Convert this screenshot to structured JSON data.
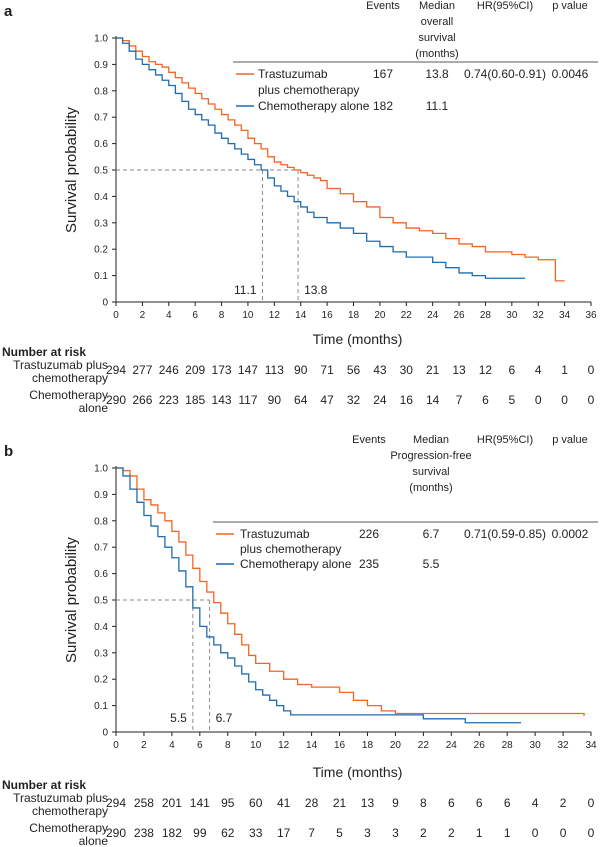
{
  "colors": {
    "trastuzumab": "#f26522",
    "chemo": "#1f6cb0"
  },
  "chart_data": [
    {
      "type": "line",
      "panel": "a",
      "xlabel": "Time (months)",
      "ylabel": "Survival probability",
      "xlim": [
        0,
        36
      ],
      "ylim": [
        0,
        1.0
      ],
      "x_ticks": [
        0,
        2,
        4,
        6,
        8,
        10,
        12,
        14,
        16,
        18,
        20,
        22,
        24,
        26,
        28,
        30,
        32,
        34,
        36
      ],
      "y_ticks": [
        "0",
        "0.1",
        "0.2",
        "0.3",
        "0.4",
        "0.5",
        "0.6",
        "0.7",
        "0.8",
        "0.9",
        "1.0"
      ],
      "table_headers": [
        "Events",
        "Median overall survival (months)",
        "HR(95%CI)",
        "p value"
      ],
      "series": [
        {
          "name": "Trastuzumab plus chemotherapy",
          "color_key": "trastuzumab",
          "events": "167",
          "median": "13.8",
          "hr": "0.74(0.60-0.91)",
          "p": "0.0046",
          "points": [
            [
              0,
              1.0
            ],
            [
              0.5,
              0.99
            ],
            [
              1,
              0.97
            ],
            [
              1.5,
              0.95
            ],
            [
              2,
              0.93
            ],
            [
              2.5,
              0.91
            ],
            [
              3,
              0.9
            ],
            [
              3.5,
              0.89
            ],
            [
              4,
              0.87
            ],
            [
              4.5,
              0.85
            ],
            [
              5,
              0.83
            ],
            [
              5.5,
              0.81
            ],
            [
              6,
              0.79
            ],
            [
              6.5,
              0.77
            ],
            [
              7,
              0.75
            ],
            [
              7.5,
              0.73
            ],
            [
              8,
              0.71
            ],
            [
              8.5,
              0.69
            ],
            [
              9,
              0.67
            ],
            [
              9.5,
              0.65
            ],
            [
              10,
              0.62
            ],
            [
              10.5,
              0.6
            ],
            [
              11,
              0.58
            ],
            [
              11.5,
              0.55
            ],
            [
              12,
              0.53
            ],
            [
              12.5,
              0.52
            ],
            [
              13,
              0.51
            ],
            [
              13.5,
              0.5
            ],
            [
              14,
              0.49
            ],
            [
              14.5,
              0.48
            ],
            [
              15,
              0.47
            ],
            [
              15.5,
              0.46
            ],
            [
              16,
              0.43
            ],
            [
              17,
              0.41
            ],
            [
              18,
              0.38
            ],
            [
              19,
              0.36
            ],
            [
              20,
              0.32
            ],
            [
              21,
              0.3
            ],
            [
              22,
              0.28
            ],
            [
              23,
              0.27
            ],
            [
              24,
              0.26
            ],
            [
              25,
              0.24
            ],
            [
              26,
              0.22
            ],
            [
              27,
              0.21
            ],
            [
              28,
              0.19
            ],
            [
              30,
              0.18
            ],
            [
              31,
              0.17
            ],
            [
              32,
              0.16
            ],
            [
              33.3,
              0.08
            ],
            [
              34,
              0.08
            ]
          ]
        },
        {
          "name": "Chemotherapy alone",
          "color_key": "chemo",
          "events": "182",
          "median": "11.1",
          "hr": "",
          "p": "",
          "points": [
            [
              0,
              1.0
            ],
            [
              0.5,
              0.98
            ],
            [
              1,
              0.95
            ],
            [
              1.5,
              0.92
            ],
            [
              2,
              0.9
            ],
            [
              2.5,
              0.88
            ],
            [
              3,
              0.86
            ],
            [
              3.5,
              0.84
            ],
            [
              4,
              0.82
            ],
            [
              4.5,
              0.79
            ],
            [
              5,
              0.76
            ],
            [
              5.5,
              0.73
            ],
            [
              6,
              0.71
            ],
            [
              6.5,
              0.69
            ],
            [
              7,
              0.67
            ],
            [
              7.5,
              0.64
            ],
            [
              8,
              0.62
            ],
            [
              8.5,
              0.6
            ],
            [
              9,
              0.58
            ],
            [
              9.5,
              0.56
            ],
            [
              10,
              0.54
            ],
            [
              10.5,
              0.52
            ],
            [
              11,
              0.5
            ],
            [
              11.5,
              0.47
            ],
            [
              12,
              0.44
            ],
            [
              12.5,
              0.42
            ],
            [
              13,
              0.4
            ],
            [
              13.5,
              0.38
            ],
            [
              14,
              0.36
            ],
            [
              14.5,
              0.34
            ],
            [
              15,
              0.32
            ],
            [
              16,
              0.3
            ],
            [
              17,
              0.28
            ],
            [
              18,
              0.26
            ],
            [
              19,
              0.23
            ],
            [
              20,
              0.21
            ],
            [
              21,
              0.19
            ],
            [
              22,
              0.17
            ],
            [
              24,
              0.15
            ],
            [
              25,
              0.13
            ],
            [
              26,
              0.11
            ],
            [
              27,
              0.1
            ],
            [
              28,
              0.09
            ],
            [
              31,
              0.09
            ]
          ]
        }
      ],
      "medians": [
        {
          "x": 11.1,
          "label": "11.1"
        },
        {
          "x": 13.8,
          "label": "13.8"
        }
      ],
      "risk_title": "Number at risk",
      "risk_rows": [
        {
          "label": [
            "Trastuzumab plus",
            "chemotherapy"
          ],
          "values": [
            "294",
            "277",
            "246",
            "209",
            "173",
            "147",
            "113",
            "90",
            "71",
            "56",
            "43",
            "30",
            "21",
            "13",
            "12",
            "6",
            "4",
            "1",
            "0"
          ]
        },
        {
          "label": [
            "Chemotherapy",
            "alone"
          ],
          "values": [
            "290",
            "266",
            "223",
            "185",
            "143",
            "117",
            "90",
            "64",
            "47",
            "32",
            "24",
            "16",
            "14",
            "7",
            "6",
            "5",
            "0",
            "0",
            "0"
          ]
        }
      ]
    },
    {
      "type": "line",
      "panel": "b",
      "xlabel": "Time (months)",
      "ylabel": "Survival probability",
      "xlim": [
        0,
        34
      ],
      "ylim": [
        0,
        1.0
      ],
      "x_ticks": [
        0,
        2,
        4,
        6,
        8,
        10,
        12,
        14,
        16,
        18,
        20,
        22,
        24,
        26,
        28,
        30,
        32,
        34
      ],
      "y_ticks": [
        "0",
        "0.1",
        "0.2",
        "0.3",
        "0.4",
        "0.5",
        "0.6",
        "0.7",
        "0.8",
        "0.9",
        "1.0"
      ],
      "table_headers": [
        "Events",
        "Median Progression-free survival (months)",
        "HR(95%CI)",
        "p value"
      ],
      "series": [
        {
          "name": "Trastuzumab plus chemotherapy",
          "color_key": "trastuzumab",
          "events": "226",
          "median": "6.7",
          "hr": "0.71(0.59-0.85)",
          "p": "0.0002",
          "points": [
            [
              0,
              1.0
            ],
            [
              0.5,
              0.99
            ],
            [
              1,
              0.97
            ],
            [
              1.5,
              0.92
            ],
            [
              2,
              0.88
            ],
            [
              2.5,
              0.86
            ],
            [
              3,
              0.83
            ],
            [
              3.5,
              0.8
            ],
            [
              4,
              0.76
            ],
            [
              4.5,
              0.72
            ],
            [
              5,
              0.67
            ],
            [
              5.5,
              0.62
            ],
            [
              6,
              0.57
            ],
            [
              6.5,
              0.53
            ],
            [
              7,
              0.49
            ],
            [
              7.5,
              0.45
            ],
            [
              8,
              0.41
            ],
            [
              8.5,
              0.37
            ],
            [
              9,
              0.33
            ],
            [
              9.5,
              0.29
            ],
            [
              10,
              0.26
            ],
            [
              11,
              0.23
            ],
            [
              12,
              0.2
            ],
            [
              13,
              0.18
            ],
            [
              14,
              0.17
            ],
            [
              16,
              0.15
            ],
            [
              17,
              0.12
            ],
            [
              18,
              0.1
            ],
            [
              19,
              0.08
            ],
            [
              20,
              0.07
            ],
            [
              22,
              0.07
            ],
            [
              33.5,
              0.06
            ]
          ]
        },
        {
          "name": "Chemotherapy alone",
          "color_key": "chemo",
          "events": "235",
          "median": "5.5",
          "hr": "",
          "p": "",
          "points": [
            [
              0,
              1.0
            ],
            [
              0.5,
              0.97
            ],
            [
              1,
              0.92
            ],
            [
              1.5,
              0.87
            ],
            [
              2,
              0.82
            ],
            [
              2.5,
              0.78
            ],
            [
              3,
              0.74
            ],
            [
              3.5,
              0.7
            ],
            [
              4,
              0.66
            ],
            [
              4.5,
              0.61
            ],
            [
              5,
              0.55
            ],
            [
              5.5,
              0.47
            ],
            [
              6,
              0.4
            ],
            [
              6.5,
              0.36
            ],
            [
              7,
              0.33
            ],
            [
              7.5,
              0.3
            ],
            [
              8,
              0.28
            ],
            [
              8.5,
              0.25
            ],
            [
              9,
              0.22
            ],
            [
              9.5,
              0.19
            ],
            [
              10,
              0.16
            ],
            [
              10.5,
              0.14
            ],
            [
              11,
              0.12
            ],
            [
              11.5,
              0.1
            ],
            [
              12,
              0.08
            ],
            [
              12.5,
              0.065
            ],
            [
              22,
              0.05
            ],
            [
              25,
              0.035
            ],
            [
              29,
              0.035
            ]
          ]
        }
      ],
      "medians": [
        {
          "x": 5.5,
          "label": "5.5"
        },
        {
          "x": 6.7,
          "label": "6.7"
        }
      ],
      "risk_title": "Number at risk",
      "risk_rows": [
        {
          "label": [
            "Trastuzumab plus",
            "chemotherapy"
          ],
          "values": [
            "294",
            "258",
            "201",
            "141",
            "95",
            "60",
            "41",
            "28",
            "21",
            "13",
            "9",
            "8",
            "6",
            "6",
            "6",
            "4",
            "2",
            "0"
          ]
        },
        {
          "label": [
            "Chemotherapy",
            "alone"
          ],
          "values": [
            "290",
            "238",
            "182",
            "99",
            "62",
            "33",
            "17",
            "7",
            "5",
            "3",
            "3",
            "2",
            "2",
            "1",
            "1",
            "0",
            "0",
            "0"
          ]
        }
      ]
    }
  ]
}
